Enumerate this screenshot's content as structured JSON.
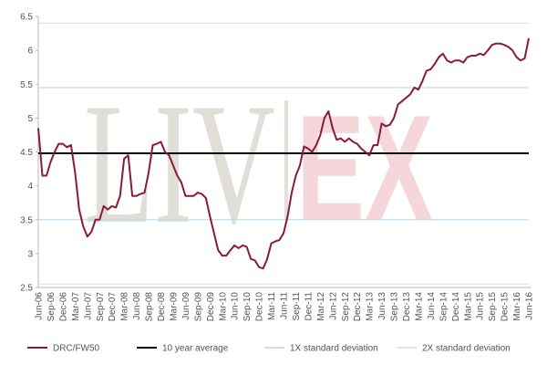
{
  "chart_data": {
    "type": "line",
    "watermark": [
      "LIV",
      "EX"
    ],
    "categories": [
      "Jun-06",
      null,
      null,
      "Sep-06",
      null,
      null,
      "Dec-06",
      null,
      null,
      "Mar-07",
      null,
      null,
      "Jun-07",
      null,
      null,
      "Sep-07",
      null,
      null,
      "Dec-07",
      null,
      null,
      "Mar-08",
      null,
      null,
      "Jun-08",
      null,
      null,
      "Sep-08",
      null,
      null,
      "Dec-08",
      null,
      null,
      "Mar-09",
      null,
      null,
      "Jun-09",
      null,
      null,
      "Sep-09",
      null,
      null,
      "Dec-09",
      null,
      null,
      "Mar-10",
      null,
      null,
      "Jun-10",
      null,
      null,
      "Sep-10",
      null,
      null,
      "Dec-10",
      null,
      null,
      "Mar-11",
      null,
      null,
      "Jun-11",
      null,
      null,
      "Sep-11",
      null,
      null,
      "Dec-11",
      null,
      null,
      "Mar-12",
      null,
      null,
      "Jun-12",
      null,
      null,
      "Sep-12",
      null,
      null,
      "Dec-12",
      null,
      null,
      "Mar-13",
      null,
      null,
      "Jun-13",
      null,
      null,
      "Sep-13",
      null,
      null,
      "Dec-13",
      null,
      null,
      "Mar-14",
      null,
      null,
      "Jun-14",
      null,
      null,
      "Sep-14",
      null,
      null,
      "Dec-14",
      null,
      null,
      "Mar-15",
      null,
      null,
      "Jun-15",
      null,
      null,
      "Sep-15",
      null,
      null,
      "Dec-15",
      null,
      null,
      "Mar-16",
      null,
      null,
      "Jun-16"
    ],
    "series": [
      {
        "name": "DRC/FW50",
        "color": "#8b1a3a",
        "values": [
          4.85,
          4.15,
          4.15,
          4.35,
          4.5,
          4.62,
          4.62,
          4.57,
          4.6,
          4.2,
          3.65,
          3.4,
          3.25,
          3.32,
          3.5,
          3.5,
          3.7,
          3.65,
          3.7,
          3.68,
          3.85,
          4.4,
          4.45,
          3.85,
          3.85,
          3.88,
          3.9,
          4.2,
          4.6,
          4.62,
          4.65,
          4.5,
          4.45,
          4.3,
          4.15,
          4.05,
          3.85,
          3.85,
          3.85,
          3.9,
          3.88,
          3.82,
          3.55,
          3.3,
          3.05,
          2.97,
          2.97,
          3.05,
          3.12,
          3.08,
          3.12,
          3.1,
          2.92,
          2.9,
          2.8,
          2.78,
          2.92,
          3.15,
          3.18,
          3.2,
          3.3,
          3.55,
          3.9,
          4.15,
          4.3,
          4.58,
          4.55,
          4.5,
          4.6,
          4.75,
          5.0,
          5.1,
          4.85,
          4.68,
          4.7,
          4.65,
          4.7,
          4.65,
          4.62,
          4.55,
          4.5,
          4.45,
          4.6,
          4.6,
          4.92,
          4.88,
          4.9,
          5.0,
          5.2,
          5.25,
          5.3,
          5.35,
          5.45,
          5.42,
          5.55,
          5.7,
          5.72,
          5.8,
          5.9,
          5.95,
          5.85,
          5.82,
          5.85,
          5.85,
          5.82,
          5.9,
          5.92,
          5.92,
          5.95,
          5.93,
          6.0,
          6.08,
          6.1,
          6.1,
          6.08,
          6.05,
          6.0,
          5.9,
          5.85,
          5.88,
          6.18
        ]
      }
    ],
    "reference_lines": [
      {
        "name": "10 year average",
        "color": "#000000",
        "values": [
          4.48
        ]
      },
      {
        "name": "1X standard deviation",
        "color": "#b9d5ec",
        "values": [
          3.5,
          5.45
        ]
      },
      {
        "name": "2X standard deviation",
        "color": "#c8e8b8",
        "values": [
          2.55,
          6.4
        ]
      }
    ],
    "ylim": [
      2.5,
      6.5
    ],
    "yticks": [
      2.5,
      3,
      3.5,
      4,
      4.5,
      5,
      5.5,
      6,
      6.5
    ]
  }
}
